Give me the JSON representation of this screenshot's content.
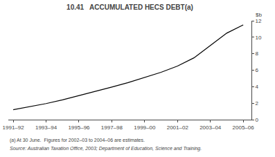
{
  "chart_data": {
    "type": "line",
    "title": "10.41   ACCUMULATED HECS DEBT(a)",
    "ylabel": "$b",
    "categories": [
      "1991–92",
      null,
      "1993–94",
      null,
      "1995–96",
      null,
      "1997–98",
      null,
      "1999–00",
      null,
      "2001–02",
      null,
      "2003–04",
      null,
      "2005–06"
    ],
    "values": [
      1.2,
      1.55,
      1.95,
      2.4,
      2.9,
      3.4,
      3.95,
      4.5,
      5.1,
      5.75,
      6.5,
      7.5,
      9.0,
      10.5,
      11.5
    ],
    "color": "#000000",
    "xlim": [
      -0.3,
      14.5
    ],
    "ylim": [
      0,
      12
    ],
    "yticks": [
      0,
      2,
      4,
      6,
      8,
      10,
      12
    ],
    "grid": false,
    "annotations": [
      "(a) At 30 June.  Figures for 2002–03 to 2004–06 are estimates.",
      "Source: Australian Taxation Office, 2003; Department of Education, Science and Training."
    ]
  }
}
